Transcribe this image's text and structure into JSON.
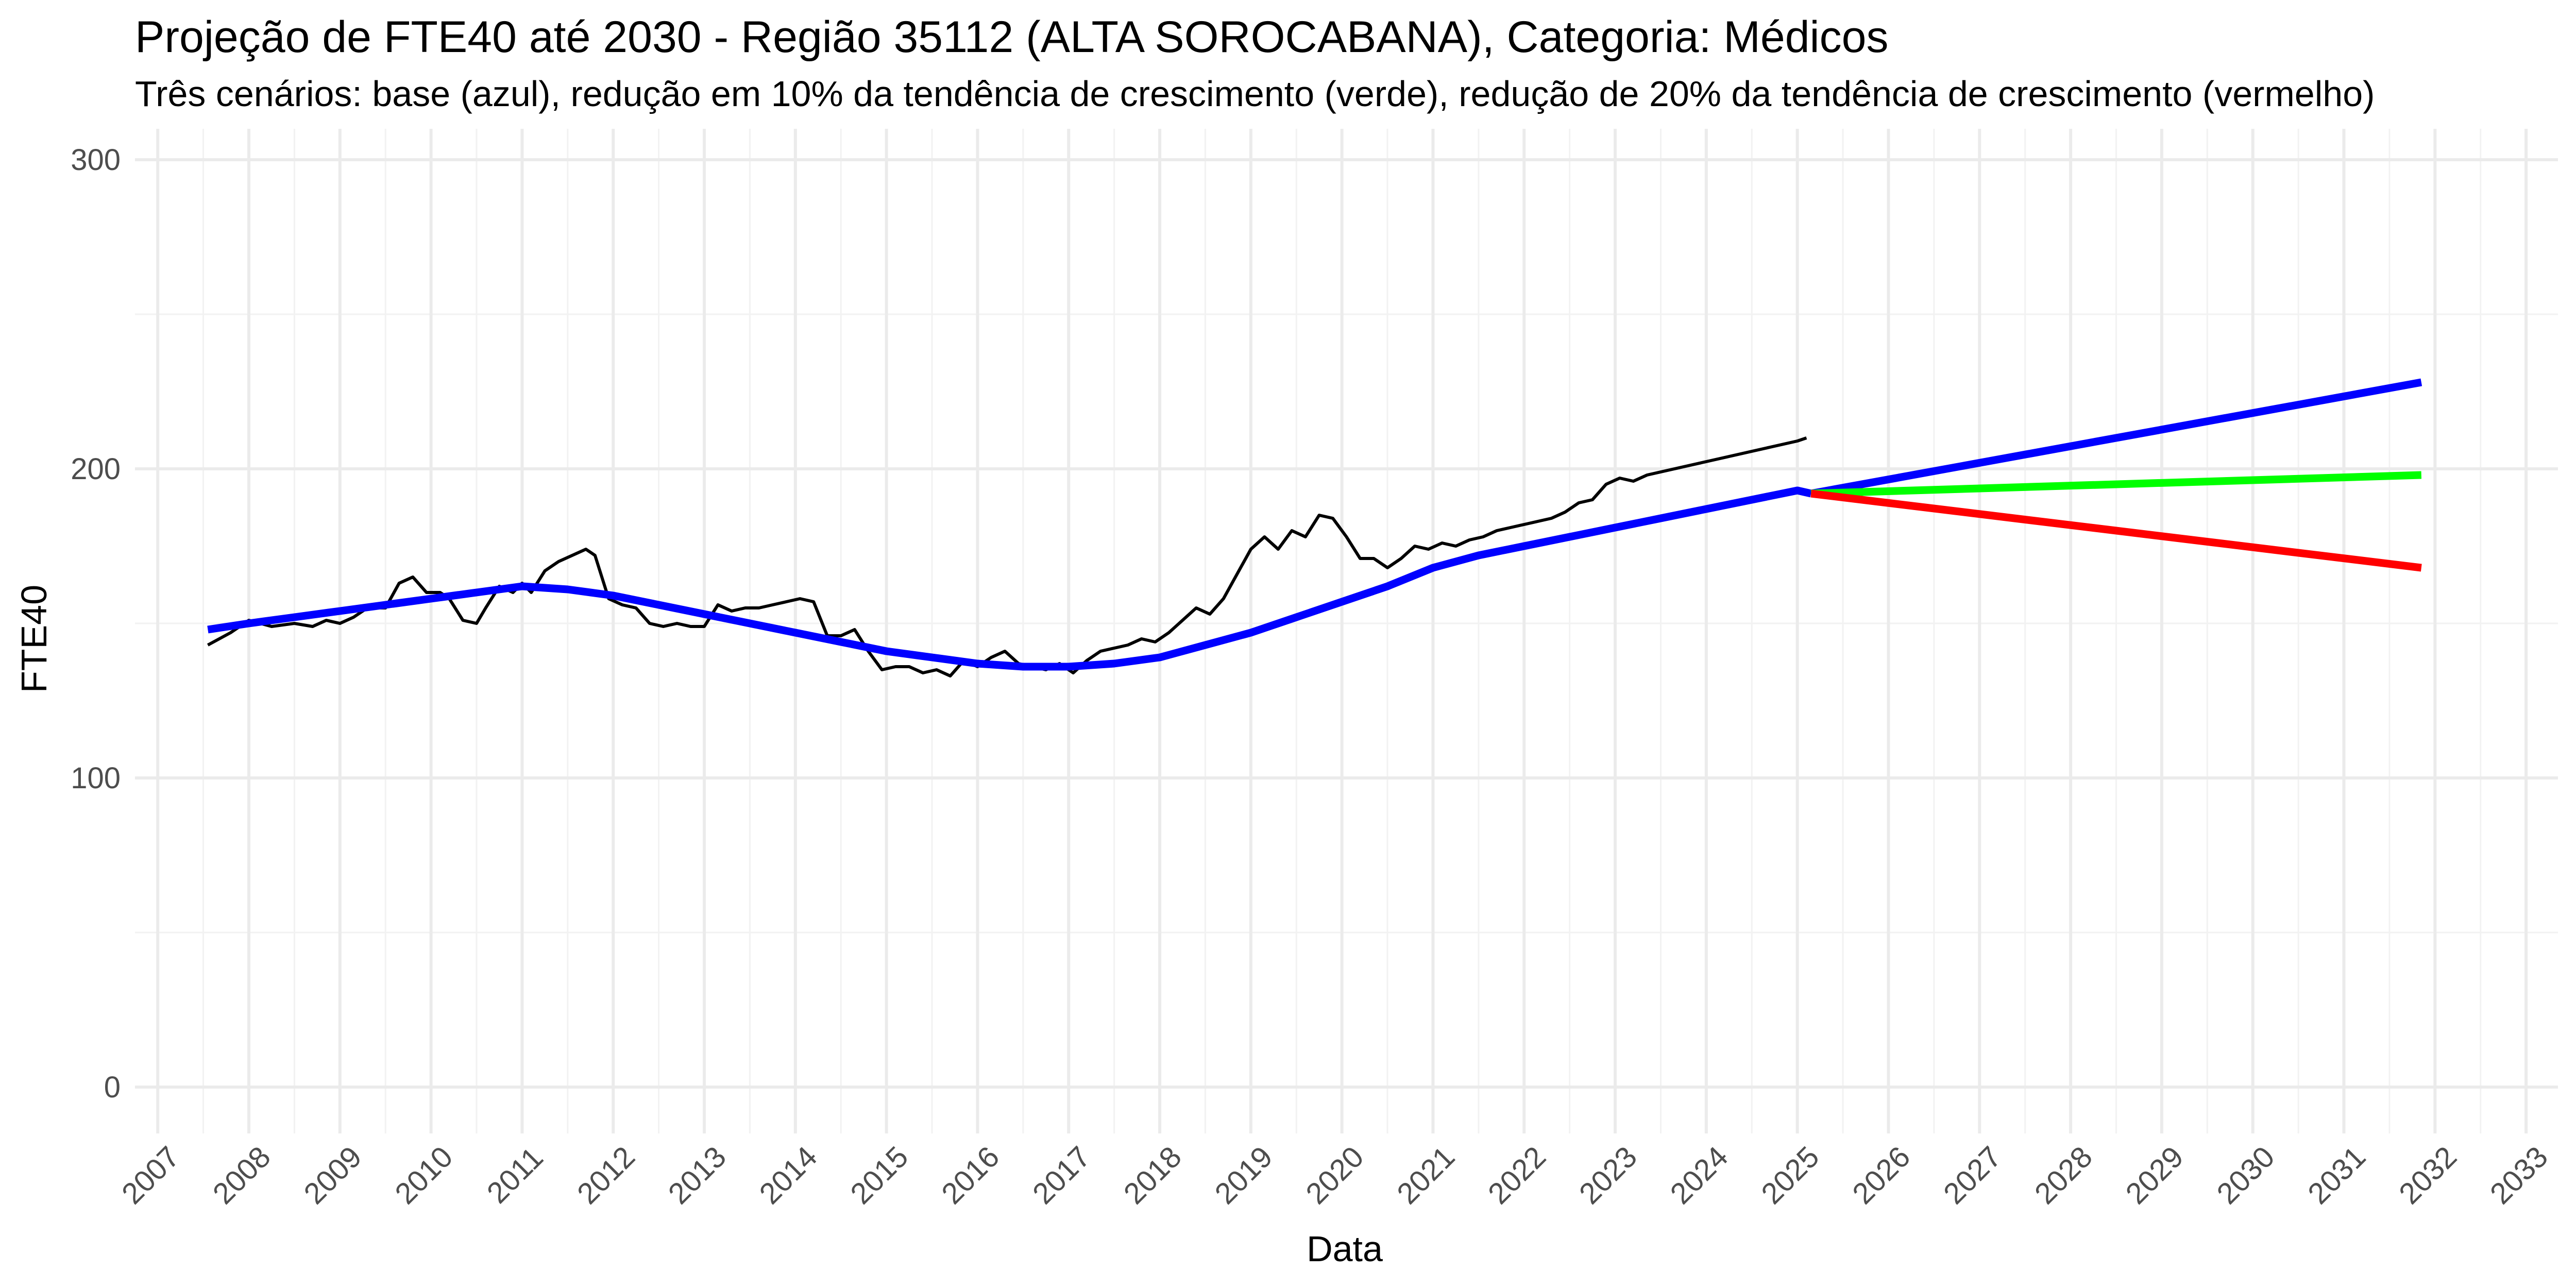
{
  "chart_data": {
    "type": "line",
    "title": "Projeção de FTE40 até 2030 - Região 35112 (ALTA SOROCABANA), Categoria: Médicos",
    "subtitle": "Três cenários: base (azul), redução em 10% da tendência de crescimento (verde), redução de 20% da tendência de crescimento (vermelho)",
    "xlabel": "Data",
    "ylabel": "FTE40",
    "xlim": [
      2006.75,
      2033.35
    ],
    "ylim": [
      -15,
      310
    ],
    "x_ticks": [
      "2007",
      "2008",
      "2009",
      "2010",
      "2011",
      "2012",
      "2013",
      "2014",
      "2015",
      "2016",
      "2017",
      "2018",
      "2019",
      "2020",
      "2021",
      "2022",
      "2023",
      "2024",
      "2025",
      "2026",
      "2027",
      "2028",
      "2029",
      "2030",
      "2031",
      "2032",
      "2033"
    ],
    "y_ticks": [
      0,
      100,
      200,
      300
    ],
    "grid": true,
    "legend": "none",
    "series": [
      {
        "color": "#000000",
        "x": [
          2007.5,
          2007.75,
          2008.0,
          2008.15,
          2008.3,
          2008.45,
          2008.6,
          2008.75,
          2008.9,
          2009.05,
          2009.25,
          2009.45,
          2009.6,
          2009.75,
          2009.9,
          2010.05,
          2010.2,
          2010.35,
          2010.5,
          2010.65,
          2010.8,
          2010.95,
          2011.1,
          2011.25,
          2011.4,
          2011.5,
          2011.65,
          2011.8,
          2011.95,
          2012.1,
          2012.25,
          2012.4,
          2012.55,
          2012.7,
          2012.85,
          2013.0,
          2013.15,
          2013.3,
          2013.45,
          2013.6,
          2013.75,
          2013.9,
          2014.05,
          2014.2,
          2014.35,
          2014.5,
          2014.65,
          2014.8,
          2014.95,
          2015.1,
          2015.25,
          2015.4,
          2015.55,
          2015.7,
          2015.85,
          2016.0,
          2016.15,
          2016.3,
          2016.45,
          2016.6,
          2016.75,
          2016.9,
          2017.05,
          2017.2,
          2017.35,
          2017.5,
          2017.65,
          2017.8,
          2017.95,
          2018.1,
          2018.25,
          2018.4,
          2018.55,
          2018.7,
          2018.85,
          2019.0,
          2019.15,
          2019.3,
          2019.45,
          2019.6,
          2019.75,
          2019.9,
          2020.05,
          2020.2,
          2020.35,
          2020.5,
          2020.65,
          2020.8,
          2020.95,
          2021.1,
          2021.25,
          2021.4,
          2021.55,
          2021.7,
          2021.85,
          2022.0,
          2022.15,
          2022.3,
          2022.45,
          2022.6,
          2022.75,
          2022.9,
          2023.05,
          2023.2,
          2023.35,
          2023.5,
          2023.65,
          2023.8,
          2023.95,
          2024.1,
          2024.25,
          2024.4,
          2024.55,
          2024.7,
          2024.85,
          2025.0,
          2025.15
        ],
        "values": [
          143,
          147,
          151,
          149,
          147,
          150,
          149,
          151,
          150,
          153,
          156,
          163,
          165,
          158,
          161,
          160,
          151,
          158,
          163,
          160,
          162,
          163,
          167,
          171,
          172,
          174,
          157,
          158,
          155,
          152,
          149,
          150,
          149,
          150,
          149,
          157,
          153,
          154,
          155,
          156,
          155,
          158,
          157,
          146,
          145,
          147,
          144,
          136,
          134,
          136,
          135,
          135,
          133,
          138,
          136,
          139,
          141,
          137,
          136,
          133,
          138,
          137,
          136,
          138,
          139,
          141,
          143,
          142,
          145,
          144,
          147,
          151,
          155,
          153,
          158,
          166,
          174,
          178,
          174,
          180,
          178,
          185,
          184,
          178,
          171,
          171,
          172,
          174,
          175,
          174,
          176,
          175,
          177,
          178,
          179,
          180,
          181,
          183,
          184,
          185,
          186,
          189,
          190,
          195,
          197,
          198,
          199,
          200,
          201,
          202,
          203,
          204,
          205,
          206,
          207,
          208,
          209
        ],
        "x_fixed": [
          2007.55,
          2007.8,
          2008.0,
          2008.25,
          2008.5,
          2008.7,
          2008.85,
          2009.0,
          2009.15,
          2009.3,
          2009.5,
          2009.65,
          2009.8,
          2009.95,
          2010.1,
          2010.2,
          2010.35,
          2010.5,
          2010.6,
          2010.75,
          2010.9,
          2011.0,
          2011.1,
          2011.25,
          2011.4,
          2011.55,
          2011.7,
          2011.8,
          2011.95,
          2012.1,
          2012.25,
          2012.4,
          2012.55,
          2012.7,
          2012.85,
          2013.0,
          2013.15,
          2013.3,
          2013.45,
          2013.6,
          2013.75,
          2013.9,
          2014.05,
          2014.2,
          2014.35,
          2014.5,
          2014.65,
          2014.8,
          2014.95,
          2015.1,
          2015.25,
          2015.4,
          2015.55,
          2015.7,
          2015.85,
          2016.0,
          2016.15,
          2016.3,
          2016.45,
          2016.6,
          2016.75,
          2016.9,
          2017.05,
          2017.2,
          2017.35,
          2017.5,
          2017.65,
          2017.8,
          2017.95,
          2018.1,
          2018.25,
          2018.4,
          2018.55,
          2018.7,
          2018.85,
          2019.0,
          2019.15,
          2019.3,
          2019.45,
          2019.6,
          2019.75,
          2019.9,
          2020.05,
          2020.2,
          2020.35,
          2020.5,
          2020.65,
          2020.8,
          2020.95,
          2021.1,
          2021.25,
          2021.4,
          2021.55,
          2021.7,
          2021.85,
          2022.0,
          2022.15,
          2022.3,
          2022.45,
          2022.6,
          2022.75,
          2022.9,
          2023.05,
          2023.2,
          2023.35,
          2023.5,
          2023.65,
          2023.8,
          2023.95,
          2024.1,
          2024.25,
          2024.4,
          2024.55,
          2024.7,
          2024.85,
          2025.0,
          2025.1
        ],
        "values_fixed": [
          143,
          147,
          151,
          149,
          150,
          149,
          151,
          150,
          152,
          155,
          155,
          163,
          165,
          160,
          160,
          158,
          151,
          150,
          155,
          162,
          160,
          163,
          160,
          167,
          170,
          172,
          174,
          172,
          158,
          156,
          155,
          150,
          149,
          150,
          149,
          149,
          156,
          154,
          155,
          155,
          156,
          157,
          158,
          157,
          146,
          146,
          148,
          141,
          135,
          136,
          136,
          134,
          135,
          133,
          138,
          136,
          139,
          141,
          137,
          136,
          135,
          137,
          134,
          138,
          141,
          142,
          143,
          145,
          144,
          147,
          151,
          155,
          153,
          158,
          166,
          174,
          178,
          174,
          180,
          178,
          185,
          184,
          178,
          171,
          171,
          168,
          171,
          175,
          174,
          176,
          175,
          177,
          178,
          180,
          181,
          182,
          183,
          184,
          186,
          189,
          190,
          195,
          197,
          196,
          198,
          199,
          200,
          201,
          202,
          203,
          204,
          205,
          206,
          207,
          208,
          209,
          210
        ]
      },
      {
        "color": "#0000ff",
        "x": [
          2007.55,
          2008.0,
          2008.5,
          2009.0,
          2009.5,
          2010.0,
          2010.5,
          2011.0,
          2011.5,
          2012.0,
          2012.5,
          2013.0,
          2013.5,
          2014.0,
          2014.5,
          2015.0,
          2015.5,
          2016.0,
          2016.5,
          2017.0,
          2017.5,
          2018.0,
          2018.5,
          2019.0,
          2019.5,
          2020.0,
          2020.5,
          2021.0,
          2021.5,
          2022.0,
          2022.5,
          2023.0,
          2023.5,
          2024.0,
          2024.5,
          2025.0,
          2025.15
        ],
        "values": [
          148,
          150,
          152,
          154,
          156,
          158,
          160,
          162,
          161,
          159,
          156,
          153,
          150,
          147,
          144,
          141,
          139,
          137,
          136,
          136,
          137,
          139,
          143,
          147,
          152,
          157,
          162,
          168,
          172,
          175,
          178,
          181,
          184,
          187,
          190,
          193,
          192
        ]
      },
      {
        "color": "#0000ff",
        "x": [
          2025.15,
          2031.85
        ],
        "values": [
          192,
          228
        ]
      },
      {
        "color": "#00ff00",
        "x": [
          2025.15,
          2031.85
        ],
        "values": [
          192,
          198
        ]
      },
      {
        "color": "#ff0000",
        "x": [
          2025.15,
          2031.85
        ],
        "values": [
          192,
          168
        ]
      }
    ]
  }
}
